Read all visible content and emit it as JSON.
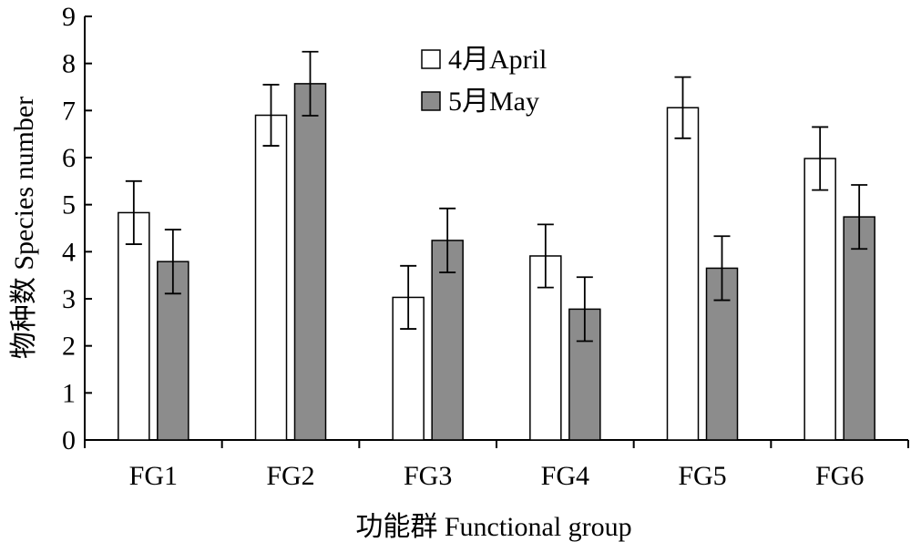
{
  "chart_data": {
    "type": "bar",
    "title": "",
    "xlabel": "功能群 Functional group",
    "ylabel": "物种数 Species number",
    "ylim": [
      0,
      9
    ],
    "yticks": [
      0,
      1,
      2,
      3,
      4,
      5,
      6,
      7,
      8,
      9
    ],
    "categories": [
      "FG1",
      "FG2",
      "FG3",
      "FG4",
      "FG5",
      "FG6"
    ],
    "series": [
      {
        "name": "4月April",
        "color": "#ffffff",
        "values": [
          4.83,
          6.9,
          3.03,
          3.91,
          7.06,
          5.98
        ],
        "errors": [
          0.67,
          0.65,
          0.67,
          0.67,
          0.65,
          0.67
        ]
      },
      {
        "name": "5月May",
        "color": "#8c8c8c",
        "values": [
          3.79,
          7.57,
          4.24,
          2.78,
          3.65,
          4.74
        ],
        "errors": [
          0.68,
          0.68,
          0.68,
          0.68,
          0.68,
          0.68
        ]
      }
    ],
    "error_bars": true,
    "grid": false,
    "legend_position": "top-center"
  }
}
